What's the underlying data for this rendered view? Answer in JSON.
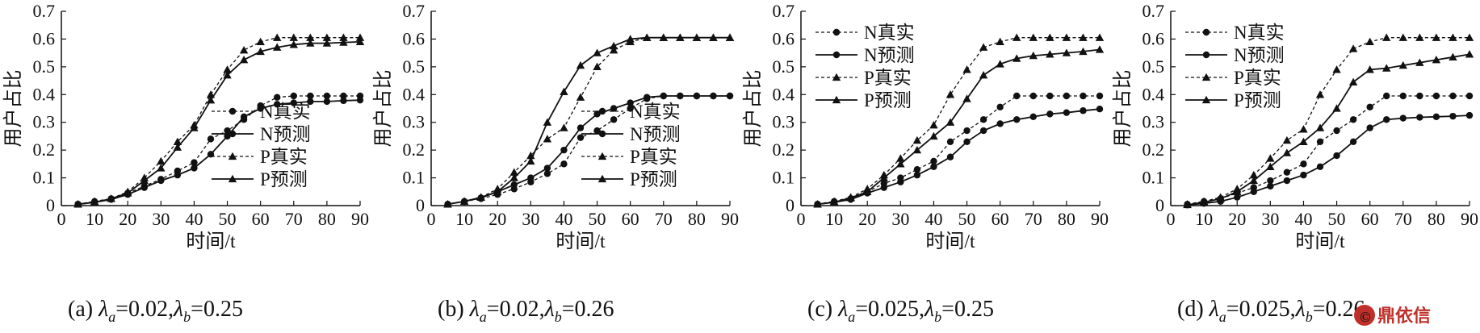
{
  "chart_data": [
    {
      "type": "line",
      "caption_prefix": "(a) ",
      "caption_a": "=0.02,",
      "caption_b": "=0.25",
      "caption_lambda": "λ",
      "caption_sub_a": "a",
      "caption_sub_b": "b",
      "xlabel": "时间/t",
      "ylabel": "用户占比",
      "xlim": [
        0,
        90
      ],
      "ylim": [
        0,
        0.7
      ],
      "xticks": [
        "0",
        "10",
        "20",
        "30",
        "40",
        "50",
        "60",
        "70",
        "80",
        "90"
      ],
      "yticks": [
        "0",
        "0.1",
        "0.2",
        "0.3",
        "0.4",
        "0.5",
        "0.6",
        "0.7"
      ],
      "legend_position": "lower-right",
      "x": [
        5,
        10,
        15,
        20,
        25,
        30,
        35,
        40,
        45,
        50,
        55,
        60,
        65,
        70,
        75,
        80,
        85,
        90
      ],
      "series": [
        {
          "name": "N真实",
          "style": "dashed",
          "marker": "circle",
          "values": [
            0.005,
            0.015,
            0.025,
            0.045,
            0.07,
            0.095,
            0.125,
            0.155,
            0.24,
            0.27,
            0.31,
            0.36,
            0.39,
            0.395,
            0.395,
            0.395,
            0.395,
            0.395
          ]
        },
        {
          "name": "N预测",
          "style": "solid",
          "marker": "circle",
          "values": [
            0.005,
            0.012,
            0.022,
            0.04,
            0.065,
            0.09,
            0.11,
            0.135,
            0.185,
            0.25,
            0.32,
            0.35,
            0.365,
            0.37,
            0.375,
            0.375,
            0.378,
            0.38
          ]
        },
        {
          "name": "P真实",
          "style": "dashed",
          "marker": "triangle",
          "values": [
            0.005,
            0.015,
            0.025,
            0.05,
            0.1,
            0.16,
            0.23,
            0.29,
            0.4,
            0.49,
            0.56,
            0.59,
            0.605,
            0.605,
            0.605,
            0.605,
            0.605,
            0.605
          ]
        },
        {
          "name": "P预测",
          "style": "solid",
          "marker": "triangle",
          "values": [
            0.005,
            0.012,
            0.025,
            0.045,
            0.09,
            0.135,
            0.21,
            0.28,
            0.38,
            0.47,
            0.525,
            0.555,
            0.57,
            0.58,
            0.585,
            0.585,
            0.588,
            0.59
          ]
        }
      ]
    },
    {
      "type": "line",
      "caption_prefix": "(b) ",
      "caption_a": "=0.02,",
      "caption_b": "=0.26",
      "caption_lambda": "λ",
      "caption_sub_a": "a",
      "caption_sub_b": "b",
      "xlabel": "时间/t",
      "ylabel": "用户占比",
      "xlim": [
        0,
        90
      ],
      "ylim": [
        0,
        0.7
      ],
      "xticks": [
        "0",
        "10",
        "20",
        "30",
        "40",
        "50",
        "60",
        "70",
        "80",
        "90"
      ],
      "yticks": [
        "0",
        "0.1",
        "0.2",
        "0.3",
        "0.4",
        "0.5",
        "0.6",
        "0.7"
      ],
      "legend_position": "lower-right",
      "x": [
        5,
        10,
        15,
        20,
        25,
        30,
        35,
        40,
        45,
        50,
        55,
        60,
        65,
        70,
        75,
        80,
        85,
        90
      ],
      "series": [
        {
          "name": "N真实",
          "style": "dashed",
          "marker": "circle",
          "values": [
            0.005,
            0.015,
            0.025,
            0.04,
            0.06,
            0.085,
            0.115,
            0.15,
            0.245,
            0.27,
            0.31,
            0.35,
            0.385,
            0.395,
            0.395,
            0.395,
            0.395,
            0.395
          ]
        },
        {
          "name": "N预测",
          "style": "solid",
          "marker": "circle",
          "values": [
            0.005,
            0.015,
            0.028,
            0.05,
            0.075,
            0.1,
            0.135,
            0.2,
            0.28,
            0.33,
            0.35,
            0.37,
            0.39,
            0.395,
            0.395,
            0.395,
            0.395,
            0.395
          ]
        },
        {
          "name": "P真实",
          "style": "dashed",
          "marker": "triangle",
          "values": [
            0.005,
            0.015,
            0.03,
            0.06,
            0.12,
            0.18,
            0.24,
            0.28,
            0.39,
            0.5,
            0.56,
            0.59,
            0.605,
            0.605,
            0.605,
            0.605,
            0.605,
            0.605
          ]
        },
        {
          "name": "P预测",
          "style": "solid",
          "marker": "triangle",
          "values": [
            0.005,
            0.015,
            0.03,
            0.05,
            0.1,
            0.16,
            0.3,
            0.41,
            0.505,
            0.55,
            0.575,
            0.6,
            0.605,
            0.605,
            0.605,
            0.605,
            0.605,
            0.605
          ]
        }
      ]
    },
    {
      "type": "line",
      "caption_prefix": "(c) ",
      "caption_a": "=0.025,",
      "caption_b": "=0.25",
      "caption_lambda": "λ",
      "caption_sub_a": "a",
      "caption_sub_b": "b",
      "xlabel": "时间/t",
      "ylabel": "用户占比",
      "xlim": [
        0,
        90
      ],
      "ylim": [
        0,
        0.7
      ],
      "xticks": [
        "0",
        "10",
        "20",
        "30",
        "40",
        "50",
        "60",
        "70",
        "80",
        "90"
      ],
      "yticks": [
        "0",
        "0.1",
        "0.2",
        "0.3",
        "0.4",
        "0.5",
        "0.6",
        "0.7"
      ],
      "legend_position": "upper-left",
      "x": [
        5,
        10,
        15,
        20,
        25,
        30,
        35,
        40,
        45,
        50,
        55,
        60,
        65,
        70,
        75,
        80,
        85,
        90
      ],
      "series": [
        {
          "name": "N真实",
          "style": "dashed",
          "marker": "circle",
          "values": [
            0.005,
            0.015,
            0.025,
            0.05,
            0.08,
            0.1,
            0.13,
            0.16,
            0.23,
            0.27,
            0.31,
            0.355,
            0.395,
            0.395,
            0.395,
            0.395,
            0.395,
            0.395
          ]
        },
        {
          "name": "N预测",
          "style": "solid",
          "marker": "circle",
          "values": [
            0.005,
            0.012,
            0.022,
            0.045,
            0.065,
            0.085,
            0.11,
            0.14,
            0.175,
            0.23,
            0.27,
            0.295,
            0.31,
            0.32,
            0.33,
            0.335,
            0.342,
            0.348
          ]
        },
        {
          "name": "P真实",
          "style": "dashed",
          "marker": "triangle",
          "values": [
            0.005,
            0.015,
            0.03,
            0.06,
            0.11,
            0.17,
            0.235,
            0.29,
            0.4,
            0.49,
            0.57,
            0.59,
            0.605,
            0.605,
            0.605,
            0.605,
            0.605,
            0.605
          ]
        },
        {
          "name": "P预测",
          "style": "solid",
          "marker": "triangle",
          "values": [
            0.005,
            0.012,
            0.028,
            0.05,
            0.1,
            0.15,
            0.2,
            0.25,
            0.3,
            0.385,
            0.47,
            0.51,
            0.53,
            0.54,
            0.545,
            0.55,
            0.555,
            0.562
          ]
        }
      ]
    },
    {
      "type": "line",
      "caption_prefix": "(d) ",
      "caption_a": "=0.025,",
      "caption_b": "=0.26",
      "caption_lambda": "λ",
      "caption_sub_a": "a",
      "caption_sub_b": "b",
      "xlabel": "时间/t",
      "ylabel": "用户占比",
      "xlim": [
        0,
        90
      ],
      "ylim": [
        0,
        0.7
      ],
      "xticks": [
        "0",
        "10",
        "20",
        "30",
        "40",
        "50",
        "60",
        "70",
        "80",
        "90"
      ],
      "yticks": [
        "0",
        "0.1",
        "0.2",
        "0.3",
        "0.4",
        "0.5",
        "0.6",
        "0.7"
      ],
      "legend_position": "upper-left",
      "x": [
        5,
        10,
        15,
        20,
        25,
        30,
        35,
        40,
        45,
        50,
        55,
        60,
        65,
        70,
        75,
        80,
        85,
        90
      ],
      "series": [
        {
          "name": "N真实",
          "style": "dashed",
          "marker": "circle",
          "values": [
            0.005,
            0.015,
            0.025,
            0.045,
            0.065,
            0.09,
            0.12,
            0.15,
            0.23,
            0.27,
            0.31,
            0.355,
            0.395,
            0.395,
            0.395,
            0.395,
            0.395,
            0.395
          ]
        },
        {
          "name": "N预测",
          "style": "solid",
          "marker": "circle",
          "values": [
            0.002,
            0.008,
            0.015,
            0.03,
            0.05,
            0.07,
            0.09,
            0.11,
            0.14,
            0.18,
            0.23,
            0.28,
            0.31,
            0.315,
            0.318,
            0.32,
            0.322,
            0.325
          ]
        },
        {
          "name": "P真实",
          "style": "dashed",
          "marker": "triangle",
          "values": [
            0.005,
            0.015,
            0.03,
            0.06,
            0.11,
            0.17,
            0.235,
            0.275,
            0.4,
            0.49,
            0.565,
            0.59,
            0.605,
            0.605,
            0.605,
            0.605,
            0.605,
            0.605
          ]
        },
        {
          "name": "P预测",
          "style": "solid",
          "marker": "triangle",
          "values": [
            0.003,
            0.012,
            0.025,
            0.05,
            0.09,
            0.14,
            0.19,
            0.23,
            0.28,
            0.35,
            0.445,
            0.49,
            0.495,
            0.505,
            0.515,
            0.525,
            0.535,
            0.545
          ]
        }
      ]
    }
  ],
  "watermark": {
    "text": "鼎依信",
    "icon": "brand-logo-icon",
    "color": "#c0302a"
  }
}
